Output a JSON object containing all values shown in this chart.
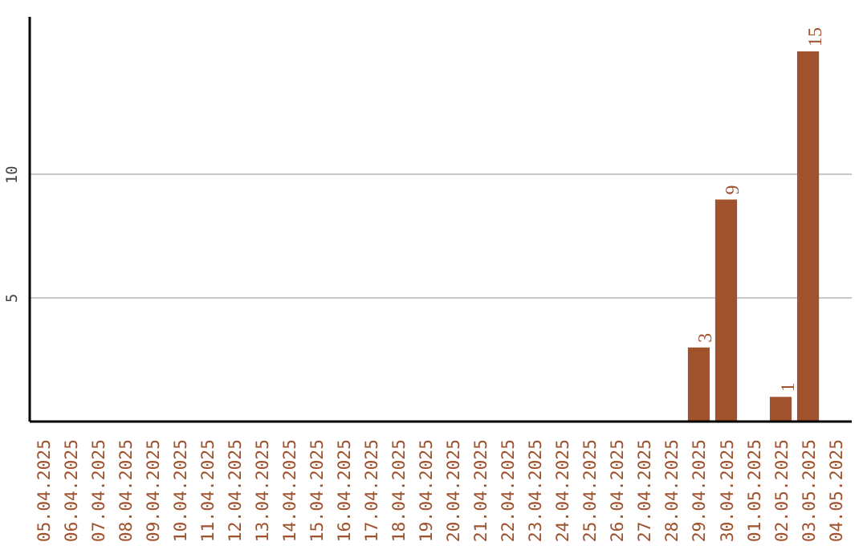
{
  "chart_data": {
    "type": "bar",
    "categories": [
      "05.04.2025",
      "06.04.2025",
      "07.04.2025",
      "08.04.2025",
      "09.04.2025",
      "10.04.2025",
      "11.04.2025",
      "12.04.2025",
      "13.04.2025",
      "14.04.2025",
      "15.04.2025",
      "16.04.2025",
      "17.04.2025",
      "18.04.2025",
      "19.04.2025",
      "20.04.2025",
      "21.04.2025",
      "22.04.2025",
      "23.04.2025",
      "24.04.2025",
      "25.04.2025",
      "26.04.2025",
      "27.04.2025",
      "28.04.2025",
      "29.04.2025",
      "30.04.2025",
      "01.05.2025",
      "02.05.2025",
      "03.05.2025",
      "04.05.2025"
    ],
    "values": [
      0,
      0,
      0,
      0,
      0,
      0,
      0,
      0,
      0,
      0,
      0,
      0,
      0,
      0,
      0,
      0,
      0,
      0,
      0,
      0,
      0,
      0,
      0,
      0,
      3,
      9,
      0,
      1,
      15,
      0
    ],
    "value_labels": [
      null,
      null,
      null,
      null,
      null,
      null,
      null,
      null,
      null,
      null,
      null,
      null,
      null,
      null,
      null,
      null,
      null,
      null,
      null,
      null,
      null,
      null,
      null,
      null,
      "3",
      "9",
      null,
      "1",
      "15",
      null
    ],
    "color": "#a0522d",
    "ylim": [
      0,
      16.4
    ],
    "yticks": [
      5,
      10
    ],
    "grid": "y"
  }
}
